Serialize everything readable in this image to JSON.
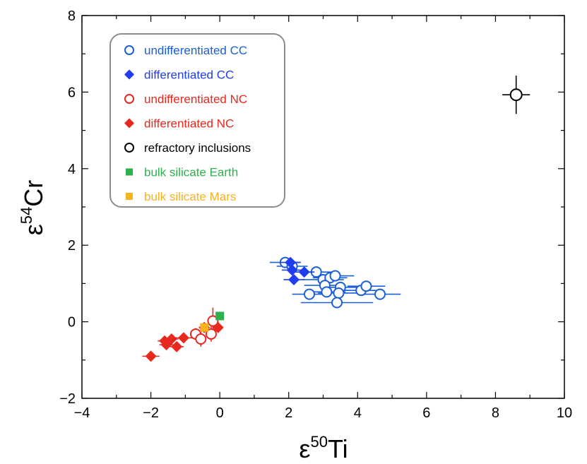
{
  "chart_data": {
    "type": "scatter",
    "title": "",
    "xlabel": {
      "prefix": "ε",
      "sup": "50",
      "suffix": "Ti"
    },
    "ylabel": {
      "prefix": "ε",
      "sup": "54",
      "suffix": "Cr"
    },
    "xlim": [
      -4,
      10
    ],
    "ylim": [
      -2,
      8
    ],
    "xticks": [
      -4,
      -2,
      0,
      2,
      4,
      6,
      8,
      10
    ],
    "yticks": [
      -2,
      0,
      2,
      4,
      6,
      8
    ],
    "xtick_labels": [
      "−4",
      "−2",
      "0",
      "2",
      "4",
      "6",
      "8",
      "10"
    ],
    "ytick_labels": [
      "−2",
      "0",
      "2",
      "4",
      "6",
      "8"
    ],
    "grid": false,
    "legend_position": "top-left",
    "series": [
      {
        "name": "undifferentiated CC",
        "marker": "open-circle",
        "color": "#1a5fd6",
        "points": [
          {
            "x": 1.9,
            "y": 1.55,
            "xerr": 0.45,
            "yerr": 0.06
          },
          {
            "x": 2.1,
            "y": 1.45,
            "xerr": 0.45,
            "yerr": 0.06
          },
          {
            "x": 2.8,
            "y": 1.3,
            "xerr": 0.5,
            "yerr": 0.06
          },
          {
            "x": 3.0,
            "y": 1.1,
            "xerr": 0.6,
            "yerr": 0.06
          },
          {
            "x": 3.2,
            "y": 1.15,
            "xerr": 0.5,
            "yerr": 0.06
          },
          {
            "x": 3.35,
            "y": 1.2,
            "xerr": 0.55,
            "yerr": 0.06
          },
          {
            "x": 3.05,
            "y": 0.95,
            "xerr": 0.6,
            "yerr": 0.06
          },
          {
            "x": 3.5,
            "y": 0.9,
            "xerr": 0.6,
            "yerr": 0.06
          },
          {
            "x": 3.1,
            "y": 0.78,
            "xerr": 0.55,
            "yerr": 0.06
          },
          {
            "x": 2.6,
            "y": 0.72,
            "xerr": 0.5,
            "yerr": 0.06
          },
          {
            "x": 3.45,
            "y": 0.75,
            "xerr": 0.6,
            "yerr": 0.06
          },
          {
            "x": 4.1,
            "y": 0.82,
            "xerr": 0.55,
            "yerr": 0.06
          },
          {
            "x": 4.25,
            "y": 0.93,
            "xerr": 0.55,
            "yerr": 0.06
          },
          {
            "x": 4.65,
            "y": 0.72,
            "xerr": 0.6,
            "yerr": 0.06
          },
          {
            "x": 3.4,
            "y": 0.5,
            "xerr": 1.05,
            "yerr": 0.06
          }
        ]
      },
      {
        "name": "differentiated CC",
        "marker": "filled-diamond",
        "color": "#1e3cf0",
        "points": [
          {
            "x": 2.05,
            "y": 1.55,
            "xerr": 0.3,
            "yerr": 0.1
          },
          {
            "x": 2.1,
            "y": 1.35,
            "xerr": 0.3,
            "yerr": 0.1
          },
          {
            "x": 2.45,
            "y": 1.3,
            "xerr": 0.3,
            "yerr": 0.08
          },
          {
            "x": 2.15,
            "y": 1.1,
            "xerr": 0.3,
            "yerr": 0.12
          }
        ]
      },
      {
        "name": "undifferentiated NC",
        "marker": "open-circle",
        "color": "#e8281e",
        "points": [
          {
            "x": -0.7,
            "y": -0.32,
            "xerr": 0.15,
            "yerr": 0.15
          },
          {
            "x": -0.55,
            "y": -0.45,
            "xerr": 0.15,
            "yerr": 0.2
          },
          {
            "x": -0.2,
            "y": 0.02,
            "xerr": 0.12,
            "yerr": 0.35
          },
          {
            "x": -0.25,
            "y": -0.32,
            "xerr": 0.15,
            "yerr": 0.2
          }
        ]
      },
      {
        "name": "differentiated NC",
        "marker": "filled-diamond",
        "color": "#e8281e",
        "points": [
          {
            "x": -2.0,
            "y": -0.9,
            "xerr": 0.25,
            "yerr": 0.07
          },
          {
            "x": -1.6,
            "y": -0.5,
            "xerr": 0.2,
            "yerr": 0.1
          },
          {
            "x": -1.55,
            "y": -0.6,
            "xerr": 0.2,
            "yerr": 0.12
          },
          {
            "x": -1.4,
            "y": -0.45,
            "xerr": 0.2,
            "yerr": 0.1
          },
          {
            "x": -1.25,
            "y": -0.65,
            "xerr": 0.2,
            "yerr": 0.1
          },
          {
            "x": -1.05,
            "y": -0.42,
            "xerr": 0.25,
            "yerr": 0.1
          },
          {
            "x": -0.45,
            "y": -0.15,
            "xerr": 0.15,
            "yerr": 0.1
          },
          {
            "x": -0.05,
            "y": -0.15,
            "xerr": 0.1,
            "yerr": 0.1
          }
        ]
      },
      {
        "name": "refractory inclusions",
        "marker": "open-circle",
        "color": "#000000",
        "points": [
          {
            "x": 8.6,
            "y": 5.93,
            "xerr": 0.4,
            "yerr": 0.5
          }
        ]
      },
      {
        "name": "bulk silicate Earth",
        "marker": "filled-square",
        "color": "#2bb24c",
        "points": [
          {
            "x": 0.0,
            "y": 0.15,
            "xerr": 0,
            "yerr": 0
          }
        ]
      },
      {
        "name": "bulk silicate Mars",
        "marker": "filled-square",
        "color": "#f7b21e",
        "points": [
          {
            "x": -0.45,
            "y": -0.15,
            "xerr": 0,
            "yerr": 0
          }
        ]
      }
    ]
  }
}
